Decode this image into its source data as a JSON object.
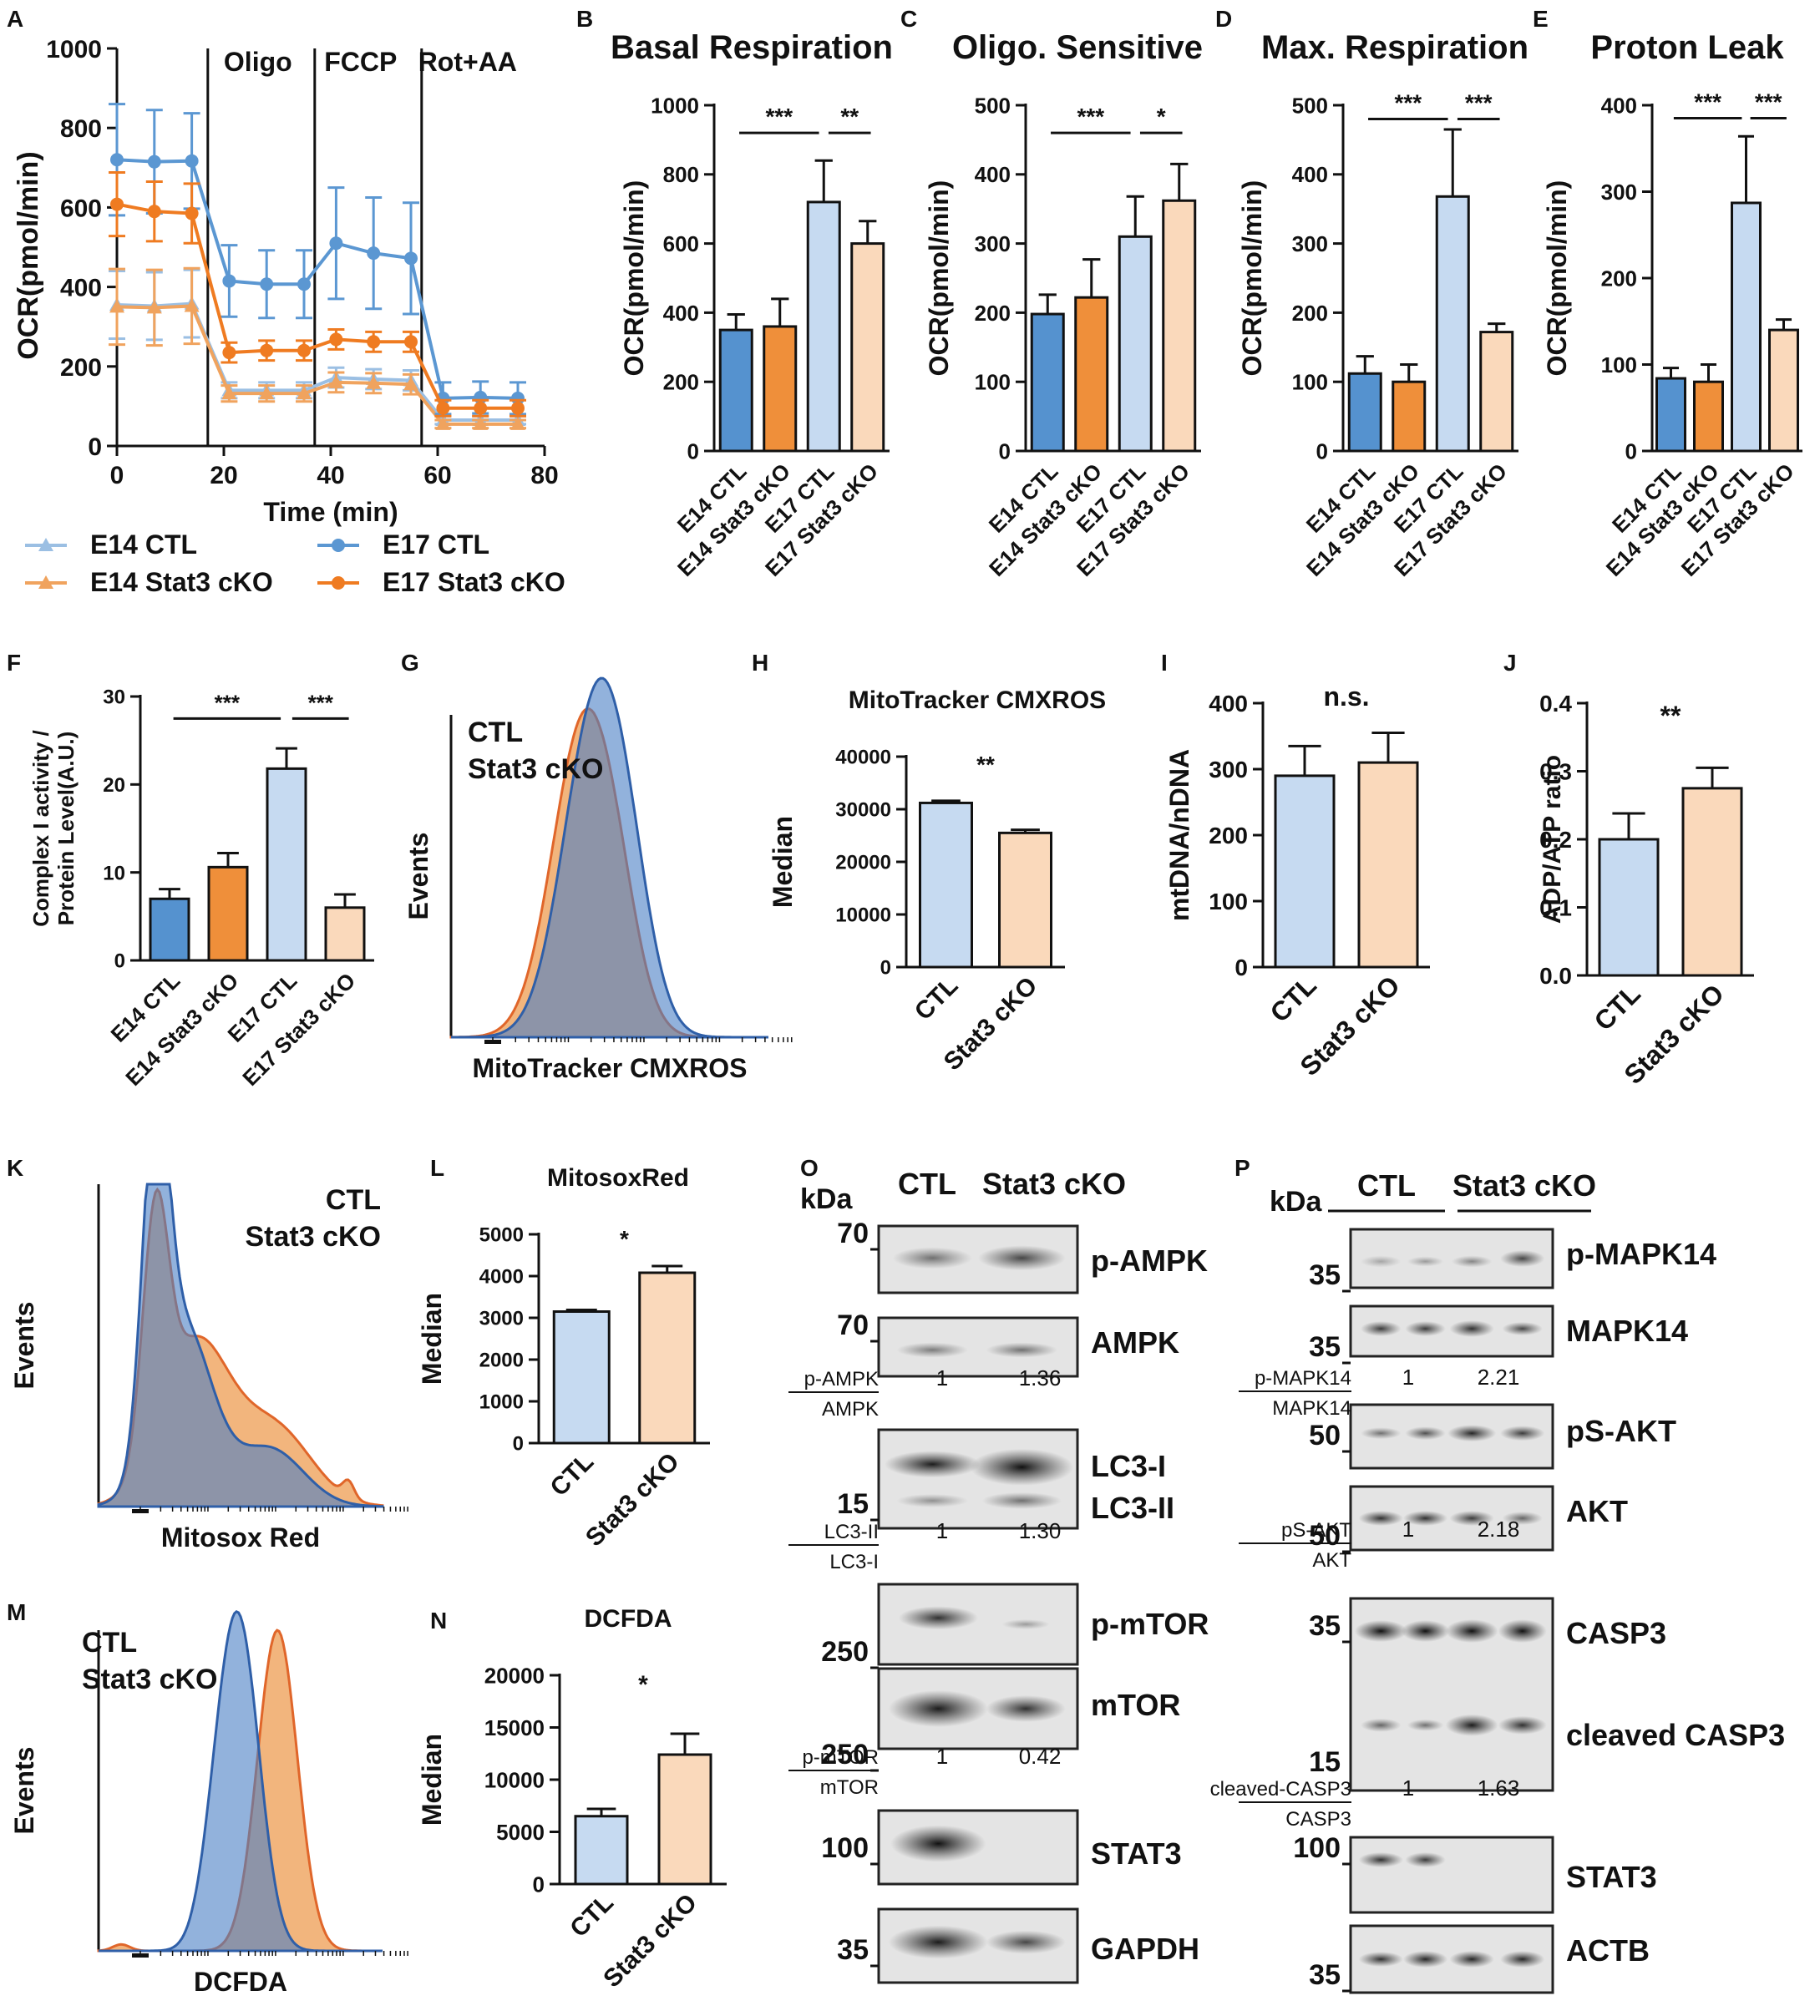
{
  "colors": {
    "e14ctl": "#9bbfe3",
    "e14cko": "#f0a35e",
    "e17ctl": "#5b97d2",
    "e17cko": "#ef7b21",
    "bar_e14ctl": "#5592cf",
    "bar_e14cko": "#ef8f3a",
    "bar_ctl": "#c6daf1",
    "bar_cko": "#fad9bb",
    "hist_blue": "#4a7ec4",
    "hist_blue_line": "#2f5fa8",
    "hist_orange": "#f0a866",
    "hist_orange_line": "#e0662a",
    "hist_overlap": "#a08a86",
    "legend_blue_text": "#3a6bc0",
    "legend_orange_text": "#e0662a"
  },
  "panel_letters": [
    "A",
    "B",
    "C",
    "D",
    "E",
    "F",
    "G",
    "H",
    "I",
    "J",
    "K",
    "L",
    "M",
    "N",
    "O",
    "P"
  ],
  "chart_data": [
    {
      "id": "A",
      "type": "line",
      "title": "",
      "xlabel": "Time (min)",
      "ylabel": "OCR(pmol/min)",
      "xlim": [
        0,
        80
      ],
      "ylim": [
        0,
        1000
      ],
      "xticks": [
        0,
        20,
        40,
        60,
        80
      ],
      "yticks": [
        0,
        200,
        400,
        600,
        800,
        1000
      ],
      "xtick_labels": [
        "0",
        "20",
        "40",
        "60",
        "80"
      ],
      "ytick_labels": [
        "0",
        "200",
        "400",
        "600",
        "800",
        "1000"
      ],
      "phases": [
        "Oligo",
        "FCCP",
        "Rot+AA"
      ],
      "phase_times": [
        17,
        37,
        57
      ],
      "x": [
        0,
        7,
        14,
        21,
        28,
        35,
        41,
        48,
        55,
        61,
        68,
        75
      ],
      "series": [
        {
          "name": "E14 CTL",
          "marker": "triangle",
          "color_key": "e14ctl",
          "values": [
            355,
            352,
            358,
            140,
            140,
            140,
            172,
            168,
            165,
            65,
            65,
            65
          ],
          "errors": [
            85,
            85,
            85,
            20,
            20,
            20,
            25,
            25,
            25,
            10,
            10,
            10
          ]
        },
        {
          "name": "E14 Stat3 cKO",
          "marker": "triangle",
          "color_key": "e14cko",
          "values": [
            350,
            348,
            352,
            132,
            132,
            132,
            160,
            158,
            155,
            55,
            55,
            55
          ],
          "errors": [
            95,
            95,
            95,
            20,
            20,
            20,
            25,
            25,
            25,
            10,
            10,
            10
          ]
        },
        {
          "name": "E17 CTL",
          "marker": "circle",
          "color_key": "e17ctl",
          "values": [
            720,
            715,
            717,
            415,
            407,
            407,
            510,
            485,
            472,
            120,
            122,
            120
          ],
          "errors": [
            140,
            130,
            120,
            90,
            85,
            85,
            140,
            140,
            140,
            40,
            40,
            40
          ]
        },
        {
          "name": "E17 Stat3 cKO",
          "marker": "circle",
          "color_key": "e17cko",
          "values": [
            608,
            590,
            585,
            235,
            240,
            240,
            268,
            262,
            262,
            95,
            95,
            95
          ],
          "errors": [
            80,
            75,
            75,
            25,
            25,
            25,
            25,
            25,
            25,
            20,
            20,
            20
          ]
        }
      ]
    },
    {
      "id": "B",
      "type": "bar",
      "title": "Basal Respiration",
      "ylabel": "OCR(pmol/min)",
      "categories": [
        "E14 CTL",
        "E14 Stat3 cKO",
        "E17 CTL",
        "E17 Stat3 cKO"
      ],
      "values": [
        350,
        360,
        720,
        600
      ],
      "errors": [
        45,
        80,
        120,
        65
      ],
      "ylim": [
        0,
        1000
      ],
      "yticks": [
        0,
        200,
        400,
        600,
        800,
        1000
      ],
      "ytick_labels": [
        "0",
        "200",
        "400",
        "600",
        "800",
        "1000"
      ],
      "colors": [
        "bar_e14ctl",
        "bar_e14cko",
        "bar_ctl",
        "bar_cko"
      ],
      "significance": [
        {
          "from": 0,
          "to": 2,
          "label": "***",
          "level": 920
        },
        {
          "from": 2,
          "to": 3,
          "label": "**",
          "level": 920
        }
      ]
    },
    {
      "id": "C",
      "type": "bar",
      "title": "Oligo. Sensitive",
      "ylabel": "OCR(pmol/min)",
      "categories": [
        "E14 CTL",
        "E14 Stat3 cKO",
        "E17 CTL",
        "E17 Stat3 cKO"
      ],
      "values": [
        198,
        222,
        310,
        362
      ],
      "errors": [
        28,
        55,
        58,
        53
      ],
      "ylim": [
        0,
        500
      ],
      "yticks": [
        0,
        100,
        200,
        300,
        400,
        500
      ],
      "ytick_labels": [
        "0",
        "100",
        "200",
        "300",
        "400",
        "500"
      ],
      "colors": [
        "bar_e14ctl",
        "bar_e14cko",
        "bar_ctl",
        "bar_cko"
      ],
      "significance": [
        {
          "from": 0,
          "to": 2,
          "label": "***",
          "level": 460
        },
        {
          "from": 2,
          "to": 3,
          "label": "*",
          "level": 460
        }
      ]
    },
    {
      "id": "D",
      "type": "bar",
      "title": "Max. Respiration",
      "ylabel": "OCR(pmol/min)",
      "categories": [
        "E14 CTL",
        "E14 Stat3 cKO",
        "E17 CTL",
        "E17 Stat3 cKO"
      ],
      "values": [
        112,
        100,
        368,
        172
      ],
      "errors": [
        25,
        25,
        97,
        12
      ],
      "ylim": [
        0,
        500
      ],
      "yticks": [
        0,
        100,
        200,
        300,
        400,
        500
      ],
      "ytick_labels": [
        "0",
        "100",
        "200",
        "300",
        "400",
        "500"
      ],
      "colors": [
        "bar_e14ctl",
        "bar_e14cko",
        "bar_ctl",
        "bar_cko"
      ],
      "significance": [
        {
          "from": 0,
          "to": 2,
          "label": "***",
          "level": 480
        },
        {
          "from": 2,
          "to": 3,
          "label": "***",
          "level": 480
        }
      ]
    },
    {
      "id": "E",
      "type": "bar",
      "title": "Proton Leak",
      "ylabel": "OCR(pmol/min)",
      "categories": [
        "E14 CTL",
        "E14 Stat3 cKO",
        "E17 CTL",
        "E17 Stat3 cKO"
      ],
      "values": [
        84,
        80,
        287,
        140
      ],
      "errors": [
        12,
        20,
        77,
        12
      ],
      "ylim": [
        0,
        400
      ],
      "yticks": [
        0,
        100,
        200,
        300,
        400
      ],
      "ytick_labels": [
        "0",
        "100",
        "200",
        "300",
        "400"
      ],
      "colors": [
        "bar_e14ctl",
        "bar_e14cko",
        "bar_ctl",
        "bar_cko"
      ],
      "significance": [
        {
          "from": 0,
          "to": 2,
          "label": "***",
          "level": 385
        },
        {
          "from": 2,
          "to": 3,
          "label": "***",
          "level": 385
        }
      ]
    },
    {
      "id": "F",
      "type": "bar",
      "title": "",
      "ylabel": "Complex I activity / Protein Level(A.U.)",
      "ylabel_lines": [
        "Complex I activity /",
        "Protein Level(A.U.)"
      ],
      "categories": [
        "E14 CTL",
        "E14 Stat3 cKO",
        "E17 CTL",
        "E17 Stat3 cKO"
      ],
      "values": [
        7,
        10.6,
        21.8,
        6
      ],
      "errors": [
        1.1,
        1.6,
        2.3,
        1.5
      ],
      "ylim": [
        0,
        30
      ],
      "yticks": [
        0,
        10,
        20,
        30
      ],
      "ytick_labels": [
        "0",
        "10",
        "20",
        "30"
      ],
      "colors": [
        "bar_e14ctl",
        "bar_e14cko",
        "bar_ctl",
        "bar_cko"
      ],
      "significance": [
        {
          "from": 0,
          "to": 2,
          "label": "***",
          "level": 27.5
        },
        {
          "from": 2,
          "to": 3,
          "label": "***",
          "level": 27.5
        }
      ]
    },
    {
      "id": "G",
      "type": "histogram",
      "xlabel": "MitoTracker CMXROS",
      "ylabel": "Events",
      "legend": [
        "CTL",
        "Stat3 cKO"
      ]
    },
    {
      "id": "H",
      "type": "bar",
      "title": "MitoTracker CMXROS",
      "ylabel": "Median",
      "categories": [
        "CTL",
        "Stat3 cKO"
      ],
      "values": [
        31200,
        25500
      ],
      "errors": [
        400,
        600
      ],
      "ylim": [
        0,
        40000
      ],
      "yticks": [
        0,
        10000,
        20000,
        30000,
        40000
      ],
      "ytick_labels": [
        "0",
        "10000",
        "20000",
        "30000",
        "40000"
      ],
      "colors": [
        "bar_ctl",
        "bar_cko"
      ],
      "significance": [
        {
          "label": "**"
        }
      ]
    },
    {
      "id": "I",
      "type": "bar",
      "title": "",
      "ylabel": "mtDNA/nDNA",
      "categories": [
        "CTL",
        "Stat3 cKO"
      ],
      "values": [
        290,
        310
      ],
      "errors": [
        45,
        45
      ],
      "ylim": [
        0,
        400
      ],
      "yticks": [
        0,
        100,
        200,
        300,
        400
      ],
      "ytick_labels": [
        "0",
        "100",
        "200",
        "300",
        "400"
      ],
      "colors": [
        "bar_ctl",
        "bar_cko"
      ],
      "significance": [
        {
          "label": "n.s."
        }
      ]
    },
    {
      "id": "J",
      "type": "bar",
      "title": "",
      "ylabel": "ADP/ATP ratio",
      "categories": [
        "CTL",
        "Stat3 cKO"
      ],
      "values": [
        0.2,
        0.275
      ],
      "errors": [
        0.038,
        0.03
      ],
      "ylim": [
        0,
        0.4
      ],
      "yticks": [
        0,
        0.1,
        0.2,
        0.3,
        0.4
      ],
      "ytick_labels": [
        "0.0",
        "0.1",
        "0.2",
        "0.3",
        "0.4"
      ],
      "colors": [
        "bar_ctl",
        "bar_cko"
      ],
      "significance": [
        {
          "label": "**"
        }
      ]
    },
    {
      "id": "K",
      "type": "histogram",
      "xlabel": "Mitosox Red",
      "ylabel": "Events",
      "legend": [
        "CTL",
        "Stat3 cKO"
      ]
    },
    {
      "id": "L",
      "type": "bar",
      "title": "MitosoxRed",
      "ylabel": "Median",
      "categories": [
        "CTL",
        "Stat3 cKO"
      ],
      "values": [
        3150,
        4080
      ],
      "errors": [
        40,
        160
      ],
      "ylim": [
        0,
        5000
      ],
      "yticks": [
        0,
        1000,
        2000,
        3000,
        4000,
        5000
      ],
      "ytick_labels": [
        "0",
        "1000",
        "2000",
        "3000",
        "4000",
        "5000"
      ],
      "colors": [
        "bar_ctl",
        "bar_cko"
      ],
      "significance": [
        {
          "label": "*"
        }
      ]
    },
    {
      "id": "M",
      "type": "histogram",
      "xlabel": "DCFDA",
      "ylabel": "Events",
      "legend": [
        "CTL",
        "Stat3 cKO"
      ]
    },
    {
      "id": "N",
      "type": "bar",
      "title": "DCFDA",
      "ylabel": "Median",
      "categories": [
        "CTL",
        "Stat3 cKO"
      ],
      "values": [
        6500,
        12400
      ],
      "errors": [
        700,
        2000
      ],
      "ylim": [
        0,
        20000
      ],
      "yticks": [
        0,
        5000,
        10000,
        15000,
        20000
      ],
      "ytick_labels": [
        "0",
        "5000",
        "10000",
        "15000",
        "20000"
      ],
      "colors": [
        "bar_ctl",
        "bar_cko"
      ],
      "significance": [
        {
          "label": "*"
        }
      ]
    }
  ],
  "blots": {
    "O": {
      "kda_label": "kDa",
      "lanes": [
        "CTL",
        "Stat3 cKO"
      ],
      "rows": [
        {
          "marker": "70",
          "label": "p-AMPK"
        },
        {
          "marker": "70",
          "label": "AMPK"
        },
        {
          "marker": "15",
          "label": "LC3-I",
          "label2": "LC3-II"
        },
        {
          "marker": "250",
          "label": "p-mTOR"
        },
        {
          "marker": "250",
          "label": "mTOR"
        },
        {
          "marker": "100",
          "label": "STAT3"
        },
        {
          "marker": "35",
          "label": "GAPDH"
        }
      ],
      "ratios": [
        {
          "num": "p-AMPK",
          "den": "AMPK",
          "values": [
            "1",
            "1.36"
          ]
        },
        {
          "num": "LC3-II",
          "den": "LC3-I",
          "values": [
            "1",
            "1.30"
          ]
        },
        {
          "num": "p-mTOR",
          "den": "mTOR",
          "values": [
            "1",
            "0.42"
          ]
        }
      ]
    },
    "P": {
      "kda_label": "kDa",
      "lanes": [
        "CTL",
        "Stat3 cKO"
      ],
      "rows": [
        {
          "marker": "35",
          "label": "p-MAPK14"
        },
        {
          "marker": "35",
          "label": "MAPK14"
        },
        {
          "marker": "50",
          "label": "pS-AKT"
        },
        {
          "marker": "50",
          "label": "AKT"
        },
        {
          "marker": "35",
          "label": "CASP3",
          "marker2": "15",
          "label2": "cleaved CASP3"
        },
        {
          "marker": "100",
          "label": "STAT3"
        },
        {
          "marker": "35",
          "label": "ACTB"
        }
      ],
      "ratios": [
        {
          "num": "p-MAPK14",
          "den": "MAPK14",
          "values": [
            "1",
            "2.21"
          ]
        },
        {
          "num": "pS-AKT",
          "den": "AKT",
          "values": [
            "1",
            "2.18"
          ]
        },
        {
          "num": "cleaved-CASP3",
          "den": "CASP3",
          "values": [
            "1",
            "1.63"
          ]
        }
      ]
    }
  }
}
